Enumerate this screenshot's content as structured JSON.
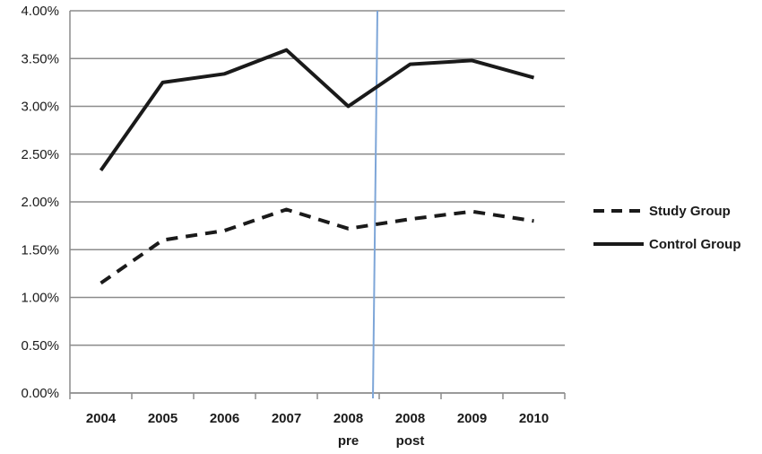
{
  "chart_data": {
    "type": "line",
    "categories": [
      {
        "label": "2004",
        "sublabel": ""
      },
      {
        "label": "2005",
        "sublabel": ""
      },
      {
        "label": "2006",
        "sublabel": ""
      },
      {
        "label": "2007",
        "sublabel": ""
      },
      {
        "label": "2008",
        "sublabel": "pre"
      },
      {
        "label": "2008",
        "sublabel": "post"
      },
      {
        "label": "2009",
        "sublabel": ""
      },
      {
        "label": "2010",
        "sublabel": ""
      }
    ],
    "y_ticks": [
      "0.00%",
      "0.50%",
      "1.00%",
      "1.50%",
      "2.00%",
      "2.50%",
      "3.00%",
      "3.50%",
      "4.00%"
    ],
    "ylim": [
      0,
      4.0
    ],
    "y_unit": "%",
    "grid": "horizontal",
    "legend_position": "right",
    "divider": {
      "between": [
        "2008 pre",
        "2008 post"
      ],
      "color": "#7ea6d8"
    },
    "series": [
      {
        "name": "Study Group",
        "style": "dashed",
        "color": "#1a1a1a",
        "values": [
          1.15,
          1.6,
          1.7,
          1.92,
          1.72,
          1.82,
          1.9,
          1.8
        ]
      },
      {
        "name": "Control Group",
        "style": "solid",
        "color": "#1a1a1a",
        "values": [
          2.33,
          3.25,
          3.34,
          3.59,
          3.0,
          3.44,
          3.48,
          3.3
        ]
      }
    ]
  }
}
